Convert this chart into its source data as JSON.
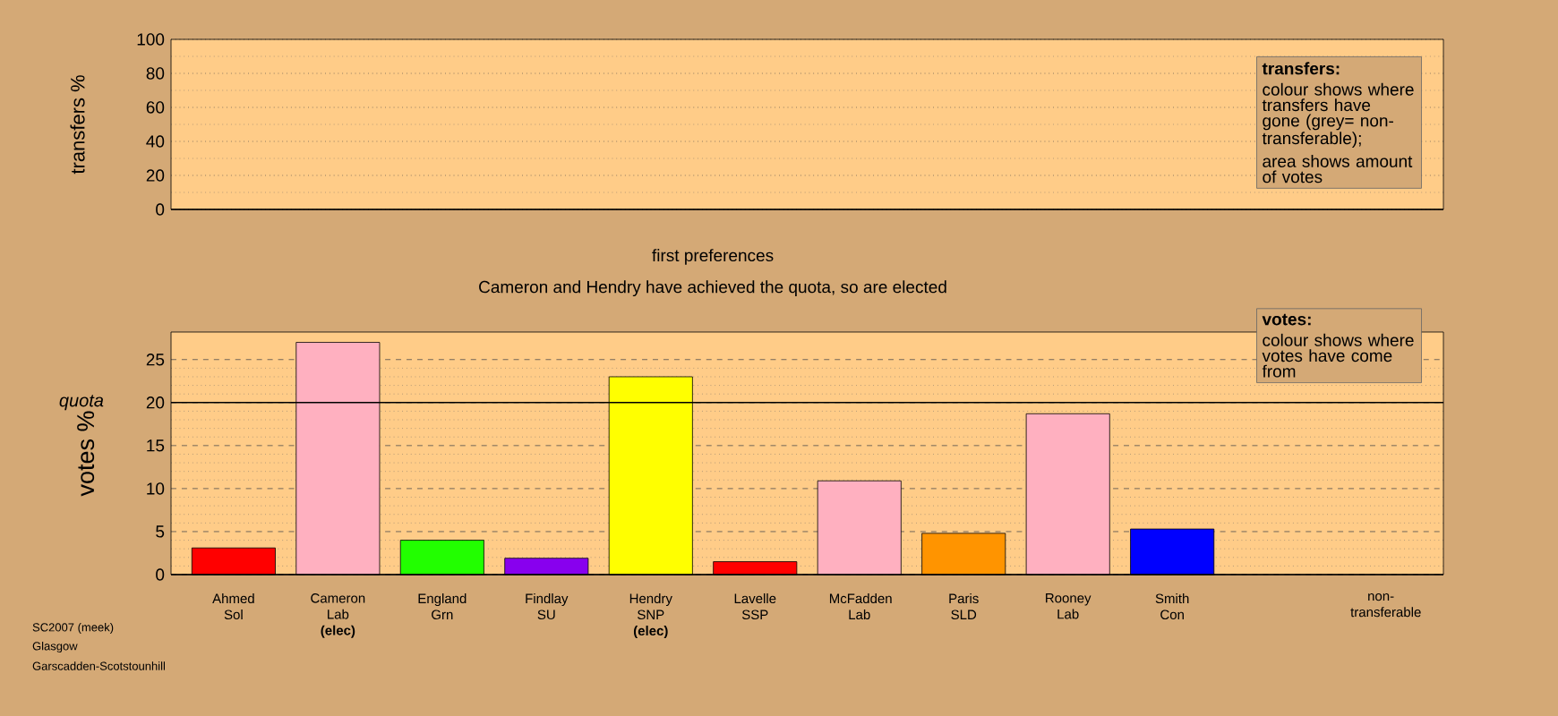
{
  "chart_data": [
    {
      "type": "bar",
      "ylabel": "transfers %",
      "categories": [
        null,
        null,
        null,
        null,
        null,
        null,
        null,
        null,
        null,
        null,
        null,
        null
      ],
      "values": [
        null,
        null,
        null,
        null,
        null,
        null,
        null,
        null,
        null,
        null,
        null,
        null
      ],
      "ylim": [
        0,
        100
      ],
      "yticks": [
        0,
        20,
        40,
        60,
        80,
        100
      ],
      "grid": "y",
      "tick_labels": "y",
      "annotations": [
        "transfers:",
        "colour shows where transfers have gone (grey= non-transferable);",
        "area shows amount of votes"
      ]
    },
    {
      "type": "bar",
      "title": "first preferences",
      "subtitle": "Cameron and Hendry have achieved the quota, so are elected",
      "ylabel": "votes %",
      "categories": [
        "Ahmed Sol",
        "Cameron Lab **(elec)**",
        "England Grn",
        "Findlay SU",
        "Hendry SNP **(elec)**",
        "Lavelle SSP",
        "McFadden Lab",
        "Paris SLD",
        "Rooney Lab",
        "Smith Con",
        null,
        "non-transferable"
      ],
      "values": [
        3.1,
        27.0,
        4.0,
        1.9,
        23.0,
        1.5,
        10.9,
        4.8,
        18.7,
        5.3,
        null,
        null
      ],
      "colors": [
        "#ff0000",
        "#ffb0c0",
        "#22ff00",
        "#8800ee",
        "#ffff00",
        "#ff0000",
        "#ffb0c0",
        "#ff9400",
        "#ffb0c0",
        "#0000ff",
        "#888888",
        "#888888"
      ],
      "ylim": [
        0,
        28.2
      ],
      "yticks": [
        0,
        5,
        10,
        15,
        20,
        25
      ],
      "grid": "y",
      "ref_lines": [
        {
          "axis": "y",
          "value": 20,
          "label": "quota"
        }
      ],
      "annotations": [
        "votes:",
        "colour shows where votes have come from",
        "SC2007 (meek)",
        "Glasgow",
        "Garscadden-Scotstounhill"
      ]
    }
  ]
}
